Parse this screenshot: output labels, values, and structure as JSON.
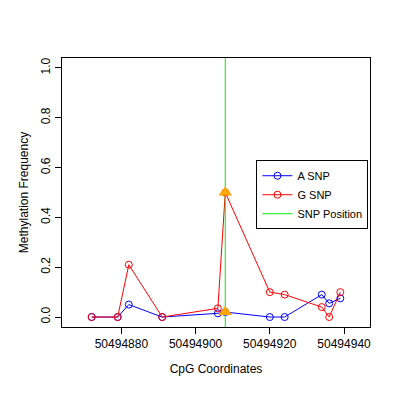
{
  "chart_data": {
    "type": "line",
    "x_label": "CpG Coordinates",
    "y_label": "Methylation Frequency",
    "xlim": [
      50494864,
      50494947
    ],
    "xticks": [
      50494880,
      50494900,
      50494920,
      50494940
    ],
    "ylim": [
      -0.04,
      1.04
    ],
    "yticks": [
      {
        "value": 0,
        "label": "0.0"
      },
      {
        "value": 0.2,
        "label": "0.2"
      },
      {
        "value": 0.4,
        "label": "0.4"
      },
      {
        "value": 0.6,
        "label": "0.6"
      },
      {
        "value": 0.8,
        "label": "0.8"
      },
      {
        "value": 1,
        "label": "1.0"
      }
    ],
    "grid": false,
    "legend": "right",
    "series": [
      {
        "name": "A SNP",
        "color": "blue",
        "marker": "circle-open",
        "type": "line",
        "x": [
          50494872,
          50494879,
          50494882,
          50494891,
          50494906,
          50494908,
          50494920,
          50494924,
          50494934,
          50494936,
          50494939
        ],
        "values": [
          0,
          0,
          0.05,
          0,
          0.015,
          0.02,
          0,
          0,
          0.09,
          0.055,
          0.075
        ]
      },
      {
        "name": "G SNP",
        "color": "red",
        "marker": "circle-open",
        "type": "line",
        "x": [
          50494872,
          50494879,
          50494882,
          50494891,
          50494906,
          50494908,
          50494920,
          50494924,
          50494934,
          50494936,
          50494939
        ],
        "values": [
          0,
          0,
          0.21,
          0,
          0.035,
          0.5,
          0.1,
          0.09,
          0.04,
          0,
          0.1
        ]
      },
      {
        "name": "SNP Position",
        "color": "#00ee00",
        "type": "vline",
        "x": [
          50494908
        ]
      },
      {
        "color": "orange",
        "marker": "triangle-up",
        "type": "scatter",
        "x": [
          50494908,
          50494908
        ],
        "values": [
          0.5,
          0.02
        ]
      }
    ]
  }
}
